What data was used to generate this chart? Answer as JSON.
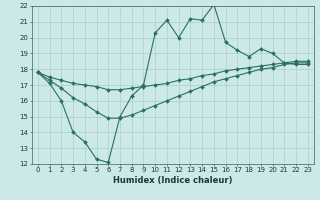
{
  "title": "",
  "xlabel": "Humidex (Indice chaleur)",
  "ylabel": "",
  "xlim": [
    -0.5,
    23.5
  ],
  "ylim": [
    12,
    22
  ],
  "xticks": [
    0,
    1,
    2,
    3,
    4,
    5,
    6,
    7,
    8,
    9,
    10,
    11,
    12,
    13,
    14,
    15,
    16,
    17,
    18,
    19,
    20,
    21,
    22,
    23
  ],
  "yticks": [
    12,
    13,
    14,
    15,
    16,
    17,
    18,
    19,
    20,
    21,
    22
  ],
  "bg_color": "#cde8e8",
  "grid_color": "#a0c8c8",
  "line_color": "#2a7060",
  "line1_x": [
    0,
    1,
    2,
    3,
    4,
    5,
    6,
    7,
    8,
    9,
    10,
    11,
    12,
    13,
    14,
    15,
    16,
    17,
    18,
    19,
    20,
    21,
    22,
    23
  ],
  "line1_y": [
    17.8,
    17.1,
    16.0,
    14.0,
    13.4,
    12.3,
    12.1,
    15.0,
    16.3,
    17.0,
    20.3,
    21.1,
    20.0,
    21.2,
    21.1,
    22.1,
    19.7,
    19.2,
    18.8,
    19.3,
    19.0,
    18.4,
    18.3,
    18.3
  ],
  "line2_x": [
    0,
    1,
    2,
    3,
    4,
    5,
    6,
    7,
    8,
    9,
    10,
    11,
    12,
    13,
    14,
    15,
    16,
    17,
    18,
    19,
    20,
    21,
    22,
    23
  ],
  "line2_y": [
    17.8,
    17.5,
    17.3,
    17.1,
    17.0,
    16.9,
    16.7,
    16.7,
    16.8,
    16.9,
    17.0,
    17.1,
    17.3,
    17.4,
    17.6,
    17.7,
    17.9,
    18.0,
    18.1,
    18.2,
    18.3,
    18.4,
    18.5,
    18.5
  ],
  "line3_x": [
    0,
    1,
    2,
    3,
    4,
    5,
    6,
    7,
    8,
    9,
    10,
    11,
    12,
    13,
    14,
    15,
    16,
    17,
    18,
    19,
    20,
    21,
    22,
    23
  ],
  "line3_y": [
    17.8,
    17.3,
    16.8,
    16.2,
    15.8,
    15.3,
    14.9,
    14.9,
    15.1,
    15.4,
    15.7,
    16.0,
    16.3,
    16.6,
    16.9,
    17.2,
    17.4,
    17.6,
    17.8,
    18.0,
    18.1,
    18.3,
    18.4,
    18.4
  ],
  "tick_fontsize": 5.0,
  "xlabel_fontsize": 6.0,
  "linewidth": 0.8,
  "markersize": 2.0
}
